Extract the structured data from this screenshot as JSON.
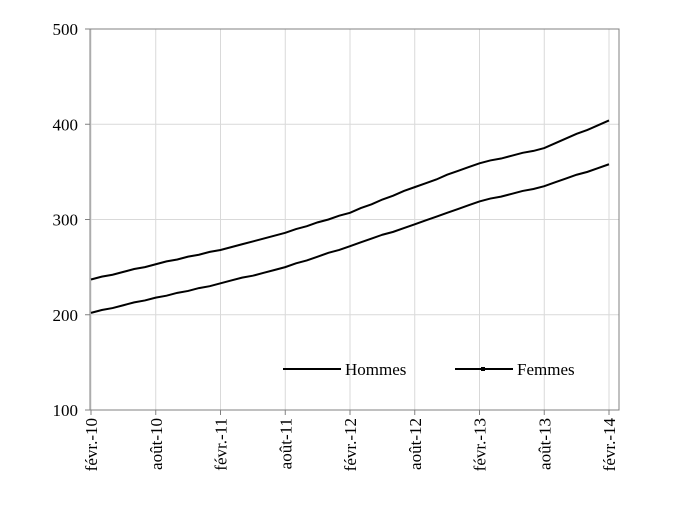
{
  "chart_data": {
    "type": "line",
    "categories": [
      "févr.-10",
      null,
      null,
      null,
      null,
      null,
      "août-10",
      null,
      null,
      null,
      null,
      null,
      "févr.-11",
      null,
      null,
      null,
      null,
      null,
      "août-11",
      null,
      null,
      null,
      null,
      null,
      "févr.-12",
      null,
      null,
      null,
      null,
      null,
      "août-12",
      null,
      null,
      null,
      null,
      null,
      "févr.-13",
      null,
      null,
      null,
      null,
      null,
      "août-13",
      null,
      null,
      null,
      null,
      null,
      "févr.-14"
    ],
    "series": [
      {
        "name": "Hommes",
        "color": "#000000",
        "values": [
          237,
          240,
          242,
          245,
          248,
          250,
          253,
          256,
          258,
          261,
          263,
          266,
          268,
          271,
          274,
          277,
          280,
          283,
          286,
          290,
          293,
          297,
          300,
          304,
          307,
          312,
          316,
          321,
          325,
          330,
          334,
          338,
          342,
          347,
          351,
          355,
          359,
          362,
          364,
          367,
          370,
          372,
          375,
          380,
          385,
          390,
          394,
          399,
          404
        ]
      },
      {
        "name": "Femmes",
        "color": "#000000",
        "values": [
          202,
          205,
          207,
          210,
          213,
          215,
          218,
          220,
          223,
          225,
          228,
          230,
          233,
          236,
          239,
          241,
          244,
          247,
          250,
          254,
          257,
          261,
          265,
          268,
          272,
          276,
          280,
          284,
          287,
          291,
          295,
          299,
          303,
          307,
          311,
          315,
          319,
          322,
          324,
          327,
          330,
          332,
          335,
          339,
          343,
          347,
          350,
          354,
          358
        ]
      }
    ],
    "ylim": [
      100,
      500
    ],
    "yticks": [
      100,
      200,
      300,
      400,
      500
    ],
    "grid": true,
    "legend": "lower right"
  }
}
